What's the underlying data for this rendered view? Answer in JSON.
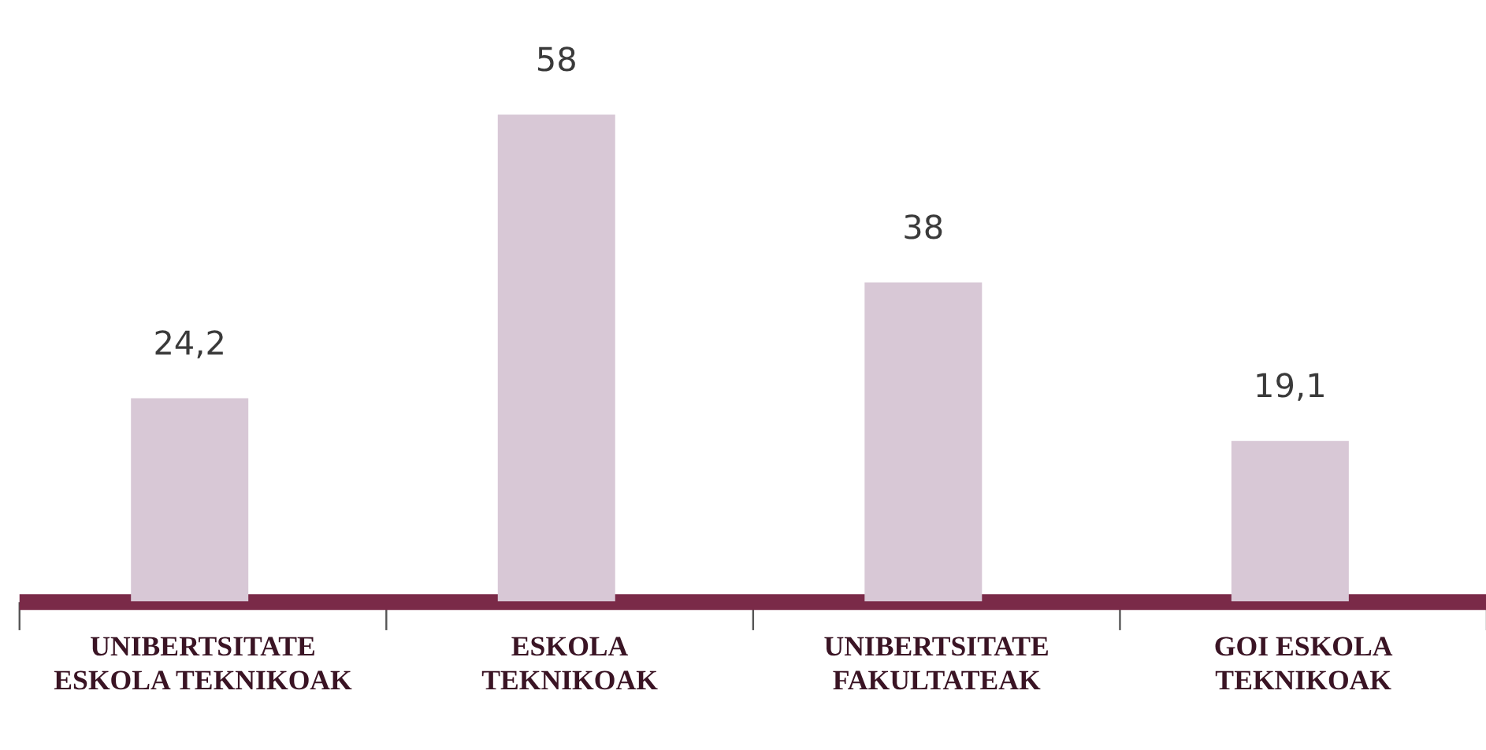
{
  "chart_data": {
    "type": "bar",
    "categories": [
      "UNIBERTSITATE\nESKOLA TEKNIKOAK",
      "ESKOLA\nTEKNIKOAK",
      "UNIBERTSITATE\nFAKULTATEAK",
      "GOI ESKOLA\nTEKNIKOAK"
    ],
    "values": [
      24.2,
      58,
      38,
      19.1
    ],
    "value_labels": [
      "24,2",
      "58",
      "38",
      "19,1"
    ],
    "color": "#d8c8d6",
    "tick_labels": "x"
  }
}
